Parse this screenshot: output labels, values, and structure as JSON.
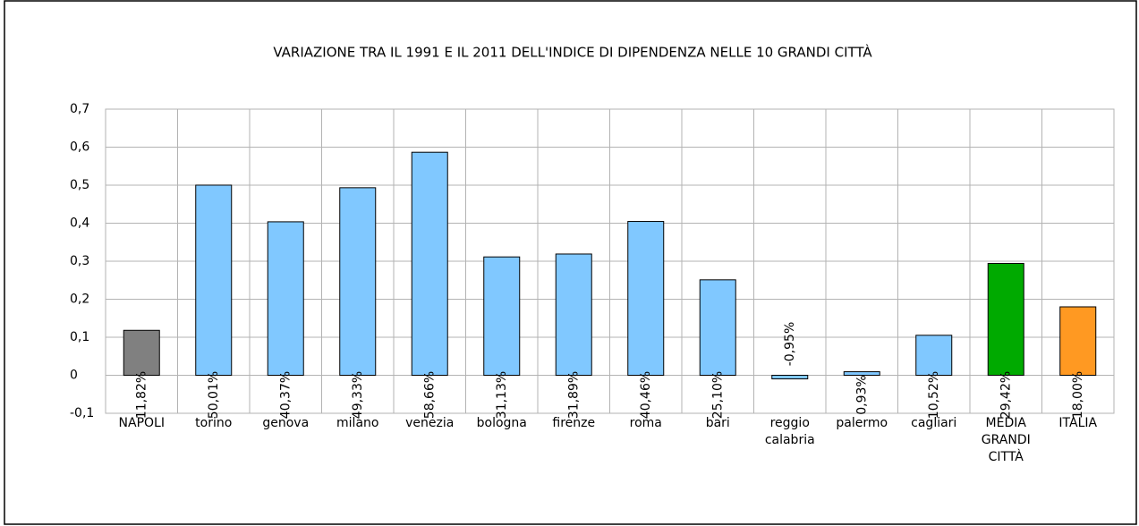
{
  "chart_data": {
    "type": "bar",
    "title": "VARIAZIONE TRA IL 1991 E IL 2011 DELL'INDICE DI DIPENDENZA NELLE 10 GRANDI CITTÀ",
    "categories": [
      "NAPOLI",
      "torino",
      "genova",
      "milano",
      "venezia",
      "bologna",
      "firenze",
      "roma",
      "bari",
      "reggio calabria",
      "palermo",
      "cagliari",
      "MEDIA GRANDI CITTÀ",
      "ITALIA"
    ],
    "values": [
      0.1182,
      0.5001,
      0.4037,
      0.4933,
      0.5866,
      0.3113,
      0.3189,
      0.4046,
      0.251,
      -0.0095,
      0.0093,
      0.1052,
      0.2942,
      0.18
    ],
    "value_labels": [
      "11,82%",
      "50,01%",
      "40,37%",
      "49,33%",
      "58,66%",
      "31,13%",
      "31,89%",
      "40,46%",
      "25,10%",
      "-0,95%",
      "0,93%",
      "10,52%",
      "29,42%",
      "18,00%"
    ],
    "colors": [
      "#808080",
      "#80c8ff",
      "#80c8ff",
      "#80c8ff",
      "#80c8ff",
      "#80c8ff",
      "#80c8ff",
      "#80c8ff",
      "#80c8ff",
      "#80c8ff",
      "#80c8ff",
      "#80c8ff",
      "#00aa00",
      "#ff9922"
    ],
    "ylim": [
      -0.1,
      0.7
    ],
    "yticks": [
      {
        "value": -0.1,
        "label": "-0,1"
      },
      0,
      {
        "value": 0.1,
        "label": "0,1"
      },
      {
        "value": 0.2,
        "label": "0,2"
      },
      {
        "value": 0.3,
        "label": "0,3"
      },
      {
        "value": 0.4,
        "label": "0,4"
      },
      {
        "value": 0.5,
        "label": "0,5"
      },
      {
        "value": 0.6,
        "label": "0,6"
      },
      {
        "value": 0.7,
        "label": "0,7"
      }
    ],
    "grid": true
  }
}
